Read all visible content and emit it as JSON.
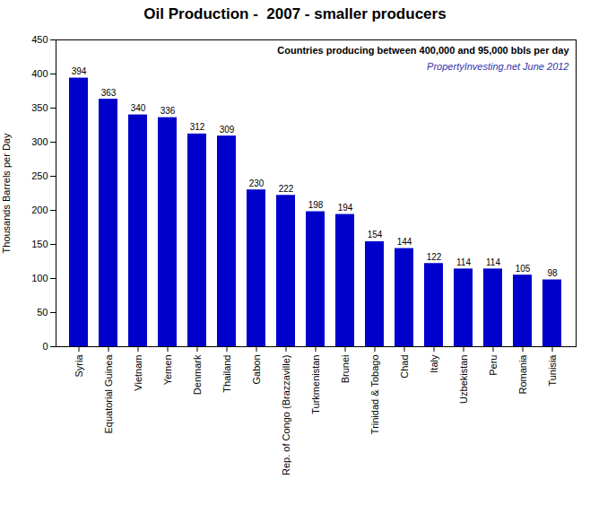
{
  "chart_data": {
    "type": "bar",
    "title": "Oil Production -  2007 - smaller producers",
    "categories": [
      "Syria",
      "Equatorial Guinea",
      "Vietnam",
      "Yemen",
      "Denmark",
      "Thailand",
      "Gabon",
      "Rep. of Congo (Brazzaville)",
      "Turkmenistan",
      "Brunei",
      "Trinidad & Tobago",
      "Chad",
      "Italy",
      "Uzbekistan",
      "Peru",
      "Romania",
      "Tunisia"
    ],
    "values": [
      394,
      363,
      340,
      336,
      312,
      309,
      230,
      222,
      198,
      194,
      154,
      144,
      122,
      114,
      114,
      105,
      98
    ],
    "color": "#0000CC",
    "ylabel": "Thousands Barrels per Day",
    "ylim": [
      0,
      450
    ],
    "yticks": [
      0,
      50,
      100,
      150,
      200,
      250,
      300,
      350,
      400,
      450
    ],
    "annotations": [
      "Countries producing between 400,000 and 95,000 bbls per day",
      "PropertyInvesting.net June 2012"
    ],
    "data_labels": true,
    "grid": false
  }
}
